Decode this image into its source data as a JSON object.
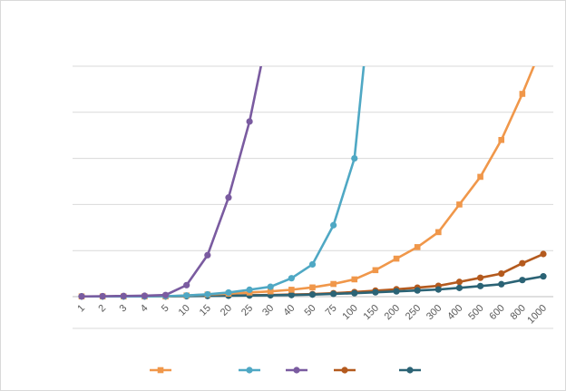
{
  "chart_data": {
    "type": "line",
    "title": "",
    "xlabel": "",
    "ylabel": "",
    "categories": [
      "1",
      "2",
      "3",
      "4",
      "5",
      "10",
      "15",
      "20",
      "25",
      "30",
      "40",
      "50",
      "75",
      "100",
      "150",
      "200",
      "250",
      "300",
      "400",
      "500",
      "600",
      "800",
      "1000"
    ],
    "ylim": [
      0,
      100
    ],
    "gridlines_y": [
      0,
      20,
      40,
      60,
      80,
      100
    ],
    "grid": true,
    "legend_position": "bottom",
    "series": [
      {
        "color": "#F0974A",
        "marker": "square",
        "values": [
          0.1,
          0.1,
          0.1,
          0.1,
          0.1,
          0.5,
          0.9,
          1.3,
          1.8,
          2.3,
          3.0,
          4.0,
          5.5,
          7.5,
          11.5,
          16.5,
          21.5,
          28,
          40,
          52,
          68,
          88,
          110
        ]
      },
      {
        "color": "#4FA8C4",
        "marker": "circle",
        "values": [
          0.1,
          0.1,
          0.1,
          0.1,
          0.2,
          0.5,
          1.0,
          1.8,
          3.0,
          4.3,
          8.0,
          14,
          31,
          60,
          150,
          null,
          null,
          null,
          null,
          null,
          null,
          null,
          null
        ]
      },
      {
        "color": "#7A5BA0",
        "marker": "circle",
        "values": [
          0.1,
          0.2,
          0.3,
          0.4,
          0.7,
          5,
          18,
          43,
          76,
          120,
          null,
          null,
          null,
          null,
          null,
          null,
          null,
          null,
          null,
          null,
          null,
          null,
          null
        ]
      },
      {
        "color": "#B45A1E",
        "marker": "circle",
        "values": [
          0.1,
          0.1,
          0.1,
          0.1,
          0.1,
          0.3,
          0.4,
          0.5,
          0.6,
          0.7,
          0.9,
          1.1,
          1.5,
          2.0,
          2.6,
          3.2,
          3.9,
          4.7,
          6.4,
          8.2,
          10,
          14.5,
          18.5
        ]
      },
      {
        "color": "#2B6375",
        "marker": "circle",
        "values": [
          0.1,
          0.1,
          0.1,
          0.1,
          0.1,
          0.2,
          0.3,
          0.4,
          0.5,
          0.6,
          0.7,
          0.9,
          1.2,
          1.5,
          1.9,
          2.3,
          2.7,
          3.1,
          3.8,
          4.6,
          5.4,
          7.2,
          8.8
        ]
      }
    ]
  }
}
